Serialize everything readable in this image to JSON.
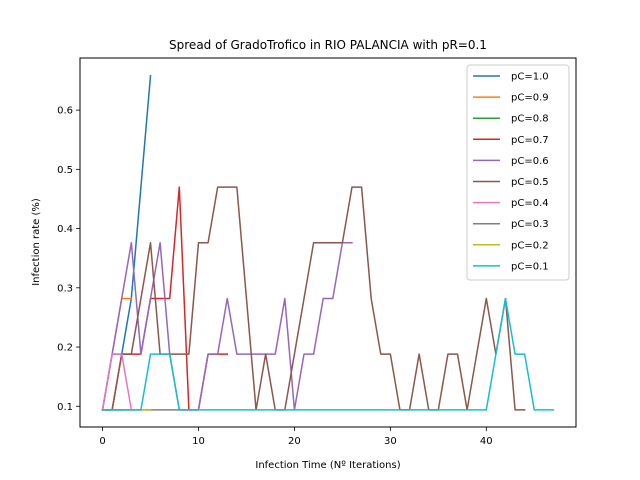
{
  "chart_data": {
    "type": "line",
    "title": "Spread of GradoTrofico in RIO PALANCIA with pR=0.1",
    "xlabel": "Infection Time (Nº Iterations)",
    "ylabel": "Infection rate (%)",
    "xlim": [
      -2.35,
      49.35
    ],
    "ylim": [
      0.065,
      0.688
    ],
    "xticks": [
      0,
      10,
      20,
      30,
      40
    ],
    "yticks": [
      0.1,
      0.2,
      0.3,
      0.4,
      0.5,
      0.6
    ],
    "ytick_labels": [
      "0.1",
      "0.2",
      "0.3",
      "0.4",
      "0.5",
      "0.6"
    ],
    "legend_position": "top-right",
    "grid": false,
    "series": [
      {
        "name": "pC=1.0",
        "color": "#1f77b4",
        "x": [
          0,
          1,
          2,
          3,
          4,
          5
        ],
        "y": [
          0.094,
          0.188,
          0.188,
          0.282,
          0.47,
          0.658
        ]
      },
      {
        "name": "pC=0.9",
        "color": "#ff7f0e",
        "x": [
          0,
          1,
          2,
          3
        ],
        "y": [
          0.094,
          0.188,
          0.282,
          0.282
        ]
      },
      {
        "name": "pC=0.8",
        "color": "#2ca02c",
        "x": [
          0,
          1,
          2
        ],
        "y": [
          0.094,
          0.094,
          0.094
        ]
      },
      {
        "name": "pC=0.7",
        "color": "#d62728",
        "x": [
          0,
          1,
          2,
          3,
          4,
          5,
          6,
          7,
          8,
          9,
          10,
          11,
          12,
          13
        ],
        "y": [
          0.094,
          0.094,
          0.188,
          0.188,
          0.188,
          0.282,
          0.282,
          0.282,
          0.47,
          0.094,
          0.094,
          0.188,
          0.188,
          0.188
        ]
      },
      {
        "name": "pC=0.6",
        "color": "#9467bd",
        "x": [
          0,
          1,
          2,
          3,
          4,
          5,
          6,
          7,
          8,
          9,
          10,
          11,
          12,
          13,
          14,
          15,
          16,
          17,
          18,
          19,
          20,
          21,
          22,
          23,
          24,
          25,
          26
        ],
        "y": [
          0.094,
          0.188,
          0.282,
          0.376,
          0.188,
          0.282,
          0.376,
          0.188,
          0.094,
          0.094,
          0.094,
          0.188,
          0.188,
          0.282,
          0.188,
          0.188,
          0.188,
          0.188,
          0.188,
          0.282,
          0.094,
          0.188,
          0.188,
          0.282,
          0.282,
          0.376,
          0.376
        ]
      },
      {
        "name": "pC=0.5",
        "color": "#8c564b",
        "x": [
          0,
          1,
          2,
          3,
          4,
          5,
          6,
          7,
          8,
          9,
          10,
          11,
          12,
          13,
          14,
          15,
          16,
          17,
          18,
          19,
          20,
          21,
          22,
          23,
          24,
          25,
          26,
          27,
          28,
          29,
          30,
          31,
          32,
          33,
          34,
          35,
          36,
          37,
          38,
          39,
          40,
          41,
          42,
          43,
          44
        ],
        "y": [
          0.094,
          0.094,
          0.188,
          0.188,
          0.282,
          0.376,
          0.188,
          0.188,
          0.188,
          0.188,
          0.376,
          0.376,
          0.47,
          0.47,
          0.47,
          0.282,
          0.094,
          0.188,
          0.094,
          0.094,
          0.188,
          0.282,
          0.376,
          0.376,
          0.376,
          0.376,
          0.47,
          0.47,
          0.282,
          0.188,
          0.188,
          0.094,
          0.094,
          0.188,
          0.094,
          0.094,
          0.188,
          0.188,
          0.094,
          0.188,
          0.282,
          0.188,
          0.282,
          0.094,
          0.094
        ]
      },
      {
        "name": "pC=0.4",
        "color": "#e377c2",
        "x": [
          0,
          1,
          2,
          3
        ],
        "y": [
          0.094,
          0.188,
          0.188,
          0.094
        ]
      },
      {
        "name": "pC=0.3",
        "color": "#7f7f7f",
        "x": [
          0,
          1,
          2,
          3,
          4,
          5,
          6,
          7,
          8,
          9
        ],
        "y": [
          0.094,
          0.094,
          0.094,
          0.094,
          0.094,
          0.094,
          0.094,
          0.094,
          0.094,
          0.094
        ]
      },
      {
        "name": "pC=0.2",
        "color": "#bcbd22",
        "x": [
          0,
          1,
          2,
          3,
          4,
          5
        ],
        "y": [
          0.094,
          0.094,
          0.094,
          0.094,
          0.094,
          0.094
        ]
      },
      {
        "name": "pC=0.1",
        "color": "#17becf",
        "x": [
          0,
          1,
          2,
          3,
          4,
          5,
          6,
          7,
          8,
          9,
          10,
          11,
          12,
          13,
          14,
          15,
          16,
          17,
          18,
          19,
          20,
          21,
          22,
          23,
          24,
          25,
          26,
          27,
          28,
          29,
          30,
          31,
          32,
          33,
          34,
          35,
          36,
          37,
          38,
          39,
          40,
          41,
          42,
          43,
          44,
          45,
          46,
          47
        ],
        "y": [
          0.094,
          0.094,
          0.094,
          0.094,
          0.094,
          0.188,
          0.188,
          0.188,
          0.094,
          0.094,
          0.094,
          0.094,
          0.094,
          0.094,
          0.094,
          0.094,
          0.094,
          0.094,
          0.094,
          0.094,
          0.094,
          0.094,
          0.094,
          0.094,
          0.094,
          0.094,
          0.094,
          0.094,
          0.094,
          0.094,
          0.094,
          0.094,
          0.094,
          0.094,
          0.094,
          0.094,
          0.094,
          0.094,
          0.094,
          0.094,
          0.094,
          0.188,
          0.282,
          0.188,
          0.188,
          0.094,
          0.094,
          0.094
        ]
      }
    ]
  }
}
